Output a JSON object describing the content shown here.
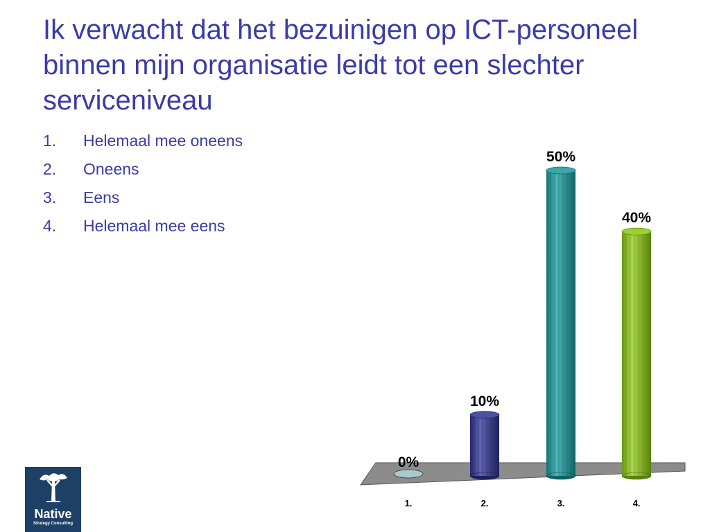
{
  "title": "Ik verwacht dat het bezuinigen op ICT-personeel binnen mijn organisatie leidt tot een slechter serviceniveau",
  "options": [
    {
      "num": "1.",
      "label": "Helemaal mee oneens"
    },
    {
      "num": "2.",
      "label": "Oneens"
    },
    {
      "num": "3.",
      "label": "Eens"
    },
    {
      "num": "4.",
      "label": "Helemaal mee eens"
    }
  ],
  "logo": {
    "name": "Native",
    "tagline": "Strategy Consulting",
    "icon": "tree-icon",
    "background": "#1e3f66"
  },
  "chart_data": {
    "type": "bar",
    "categories": [
      "1.",
      "2.",
      "3.",
      "4."
    ],
    "values": [
      0,
      10,
      50,
      40
    ],
    "data_labels": [
      "0%",
      "10%",
      "50%",
      "40%"
    ],
    "colors": [
      "#a9c9cc",
      "#2e3192",
      "#16999c",
      "#8cc811"
    ],
    "floor_color": "#8c8c8c",
    "ylim": [
      0,
      50
    ],
    "grid": false,
    "legend": "none"
  }
}
